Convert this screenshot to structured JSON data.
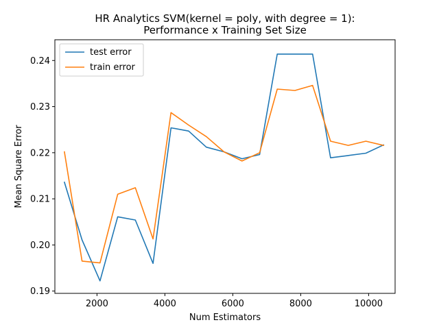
{
  "chart_data": {
    "type": "line",
    "title_line1": "HR Analytics SVM(kernel = poly, with degree = 1):",
    "title_line2": "Performance x Training Set Size",
    "xlabel": "Num Estimators",
    "ylabel": "Mean Square Error",
    "xlim": [
      760,
      10780
    ],
    "ylim": [
      0.1895,
      0.2445
    ],
    "xticks": [
      2000,
      4000,
      6000,
      8000,
      10000
    ],
    "yticks": [
      0.19,
      0.2,
      0.21,
      0.22,
      0.23,
      0.24
    ],
    "x": [
      1040,
      1560,
      2090,
      2610,
      3130,
      3650,
      4180,
      4700,
      5220,
      5740,
      6270,
      6790,
      7310,
      7830,
      8350,
      8880,
      9400,
      9920,
      10440
    ],
    "series": [
      {
        "name": "test error",
        "color": "#1f77b4",
        "values": [
          0.2136,
          0.2011,
          0.1922,
          0.2061,
          0.2054,
          0.196,
          0.2254,
          0.2247,
          0.2212,
          0.2202,
          0.2187,
          0.2196,
          0.2414,
          0.2414,
          0.2414,
          0.2189,
          0.2194,
          0.2199,
          0.2217
        ]
      },
      {
        "name": "train error",
        "color": "#ff7f0e",
        "values": [
          0.2202,
          0.1965,
          0.1961,
          0.211,
          0.2124,
          0.2013,
          0.2287,
          0.226,
          0.2235,
          0.2202,
          0.2182,
          0.22,
          0.2338,
          0.2335,
          0.2346,
          0.2225,
          0.2216,
          0.2225,
          0.2216
        ]
      }
    ],
    "legend_position": "top-left",
    "grid": false
  }
}
